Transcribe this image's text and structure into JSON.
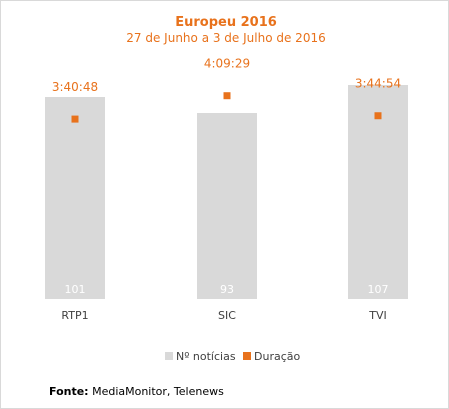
{
  "chart_data": {
    "type": "bar",
    "title": "Europeu 2016",
    "subtitle": "27 de Junho a 3 de Julho de 2016",
    "categories": [
      "RTP1",
      "SIC",
      "TVI"
    ],
    "series": [
      {
        "name": "Nº notícias",
        "type": "bar",
        "color": "#d9d9d9",
        "values": [
          101,
          93,
          107
        ],
        "labels": [
          "101",
          "93",
          "107"
        ]
      },
      {
        "name": "Duração",
        "type": "scatter",
        "color": "#e8721c",
        "values_seconds": [
          13248,
          14969,
          13494
        ],
        "labels": [
          "3:40:48",
          "4:09:29",
          "3:44:54"
        ]
      }
    ],
    "ylim": [
      0,
      110
    ],
    "y2lim": [
      0,
      16200
    ],
    "grid": false,
    "legend_position": "bottom"
  },
  "source": {
    "label": "Fonte:",
    "text": "MediaMonitor, Telenews"
  }
}
